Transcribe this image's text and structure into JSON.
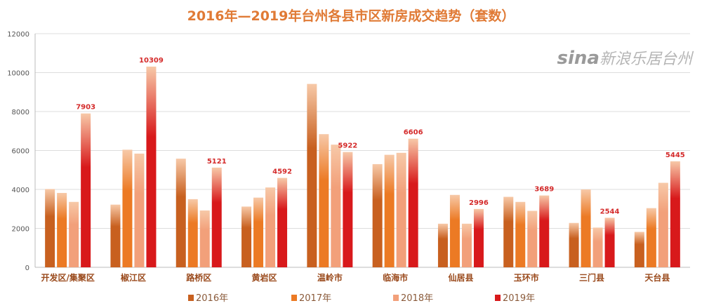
{
  "chart_data": {
    "type": "bar",
    "title": "2016年—2019年台州各县市区新房成交趋势（套数）",
    "xlabel": "",
    "ylabel": "",
    "ylim": [
      0,
      12000
    ],
    "yticks": [
      0,
      2000,
      4000,
      6000,
      8000,
      10000,
      12000
    ],
    "grid": true,
    "legend_position": "bottom",
    "categories": [
      "开发区/集聚区",
      "椒江区",
      "路桥区",
      "黄岩区",
      "温岭市",
      "临海市",
      "仙居县",
      "玉环市",
      "三门县",
      "天台县"
    ],
    "series": [
      {
        "name": "2016年",
        "color": "#c8601f",
        "values": [
          4020,
          3220,
          5580,
          3120,
          9420,
          5300,
          2240,
          3620,
          2280,
          1820
        ]
      },
      {
        "name": "2017年",
        "color": "#ec7a24",
        "values": [
          3820,
          6040,
          3500,
          3580,
          6840,
          5780,
          3720,
          3360,
          4000,
          3040
        ]
      },
      {
        "name": "2018年",
        "color": "#f2a07a",
        "values": [
          3360,
          5840,
          2920,
          4100,
          6300,
          5880,
          2240,
          2900,
          2040,
          4340
        ]
      },
      {
        "name": "2019年",
        "color": "#d8191b",
        "values": [
          7903,
          10309,
          5121,
          4592,
          5922,
          6606,
          2996,
          3689,
          2544,
          5445
        ],
        "labeled": true
      }
    ],
    "label_color": "#d42a2a"
  },
  "watermark": {
    "brand": "sina",
    "text": "新浪乐居台州"
  }
}
